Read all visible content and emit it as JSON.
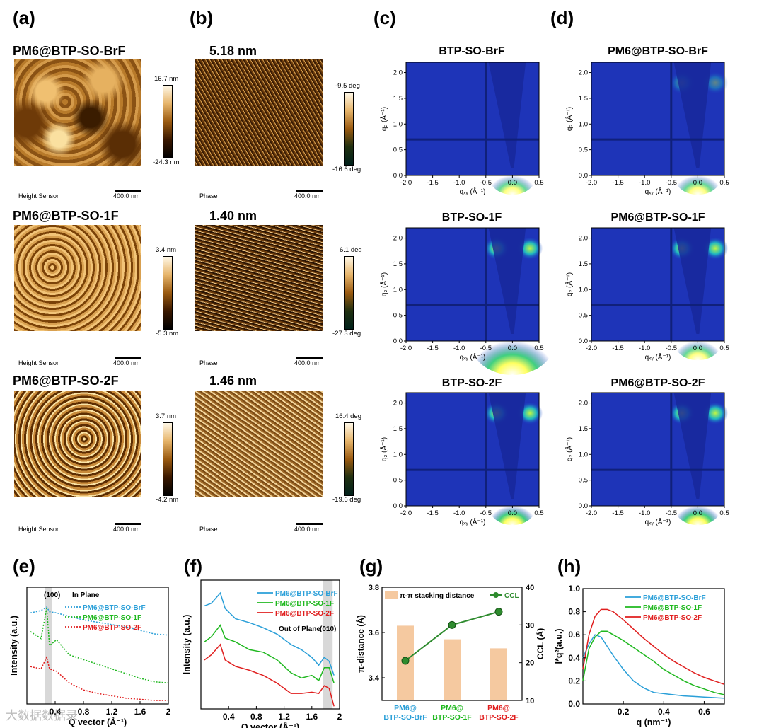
{
  "panels": {
    "a": "(a)",
    "b": "(b)",
    "c": "(c)",
    "d": "(d)",
    "e": "(e)",
    "f": "(f)",
    "g": "(g)",
    "h": "(h)"
  },
  "afm_height": [
    {
      "title": "PM6@BTP-SO-BrF",
      "cmax": "16.7 nm",
      "cmin": "-24.3 nm",
      "label": "Height Sensor",
      "scale": "400.0 nm"
    },
    {
      "title": "PM6@BTP-SO-1F",
      "cmax": "3.4 nm",
      "cmin": "-5.3 nm",
      "label": "Height Sensor",
      "scale": "400.0 nm"
    },
    {
      "title": "PM6@BTP-SO-2F",
      "cmax": "3.7 nm",
      "cmin": "-4.2 nm",
      "label": "Height Sensor",
      "scale": "400.0 nm"
    }
  ],
  "afm_phase": [
    {
      "title": "5.18 nm",
      "cmax": "-9.5 deg",
      "cmin": "-16.6 deg",
      "label": "Phase",
      "scale": "400.0 nm"
    },
    {
      "title": "1.40 nm",
      "cmax": "6.1 deg",
      "cmin": "-27.3 deg",
      "label": "Phase",
      "scale": "400.0 nm"
    },
    {
      "title": "1.46 nm",
      "cmax": "16.4 deg",
      "cmin": "-19.6 deg",
      "label": "Phase",
      "scale": "400.0 nm"
    }
  ],
  "giwaxs_c": [
    "BTP-SO-BrF",
    "BTP-SO-1F",
    "BTP-SO-2F"
  ],
  "giwaxs_d": [
    "PM6@BTP-SO-BrF",
    "PM6@BTP-SO-1F",
    "PM6@BTP-SO-2F"
  ],
  "giwaxs_axes": {
    "x_ticks": [
      "-2.0",
      "-1.5",
      "-1.0",
      "-0.5",
      "0.0",
      "0.5"
    ],
    "y_ticks": [
      "0.0",
      "0.5",
      "1.0",
      "1.5",
      "2.0"
    ],
    "xlim": [
      -2.0,
      0.5
    ],
    "ylim": [
      0,
      2.2
    ],
    "xlabel": "qₓᵧ (Å⁻¹)",
    "ylabel": "q₂ (Å⁻¹)"
  },
  "watermark": "大数据数据录",
  "colors": {
    "blue": "#2a9fd8",
    "green": "#1fb81f",
    "red": "#e01e1e",
    "bar": "#f5c9a0",
    "ccl": "#2e8b2e"
  },
  "chart_data": [
    {
      "type": "line",
      "panel": "e",
      "xlabel": "Q vector (Å⁻¹)",
      "ylabel": "Intensity (a.u.)",
      "annotation": "In Plane",
      "peak_label": "(100)",
      "x_ticks": [
        "0.4",
        "0.8",
        "1.2",
        "1.6",
        "2"
      ],
      "xlim": [
        0,
        2
      ],
      "x": [
        0.05,
        0.2,
        0.28,
        0.32,
        0.42,
        0.6,
        0.8,
        1.0,
        1.2,
        1.4,
        1.6,
        1.8,
        2.0
      ],
      "series": [
        {
          "name": "PM6@BTP-SO-BrF",
          "values": [
            0.78,
            0.8,
            0.83,
            0.79,
            0.78,
            0.75,
            0.72,
            0.7,
            0.68,
            0.66,
            0.63,
            0.6,
            0.59
          ]
        },
        {
          "name": "PM6@BTP-SO-1F",
          "values": [
            0.62,
            0.56,
            0.82,
            0.5,
            0.55,
            0.42,
            0.38,
            0.34,
            0.3,
            0.26,
            0.22,
            0.19,
            0.18
          ]
        },
        {
          "name": "PM6@BTP-SO-2F",
          "values": [
            0.32,
            0.3,
            0.4,
            0.3,
            0.28,
            0.18,
            0.12,
            0.09,
            0.07,
            0.05,
            0.04,
            0.03,
            0.03
          ]
        }
      ]
    },
    {
      "type": "line",
      "panel": "f",
      "xlabel": "Q vector (Å⁻¹)",
      "ylabel": "Intensity (a.u.)",
      "annotation": "Out of Plane",
      "peak_label": "(010)",
      "x_ticks": [
        "0.4",
        "0.8",
        "1.2",
        "1.6",
        "2"
      ],
      "xlim": [
        0,
        2
      ],
      "x": [
        0.05,
        0.15,
        0.28,
        0.35,
        0.5,
        0.7,
        0.9,
        1.1,
        1.3,
        1.45,
        1.6,
        1.7,
        1.78,
        1.85,
        1.92
      ],
      "series": [
        {
          "name": "PM6@BTP-SO-BrF",
          "values": [
            0.8,
            0.82,
            0.9,
            0.78,
            0.7,
            0.67,
            0.63,
            0.58,
            0.5,
            0.46,
            0.4,
            0.34,
            0.4,
            0.37,
            0.26
          ]
        },
        {
          "name": "PM6@BTP-SO-1F",
          "values": [
            0.52,
            0.56,
            0.65,
            0.55,
            0.52,
            0.46,
            0.44,
            0.38,
            0.28,
            0.24,
            0.26,
            0.22,
            0.32,
            0.32,
            0.2
          ]
        },
        {
          "name": "PM6@BTP-SO-2F",
          "values": [
            0.38,
            0.42,
            0.5,
            0.38,
            0.33,
            0.3,
            0.26,
            0.2,
            0.12,
            0.12,
            0.13,
            0.12,
            0.18,
            0.16,
            0.02
          ]
        }
      ]
    },
    {
      "type": "bar",
      "panel": "g",
      "categories": [
        "PM6@\nBTP-SO-BrF",
        "PM6@\nBTP-SO-1F",
        "PM6@\nBTP-SO-2F"
      ],
      "category_lines": [
        [
          "PM6@",
          "BTP-SO-BrF"
        ],
        [
          "PM6@",
          "BTP-SO-1F"
        ],
        [
          "PM6@",
          "BTP-SO-2F"
        ]
      ],
      "category_colors": [
        "#2a9fd8",
        "#1fb81f",
        "#e01e1e"
      ],
      "ylabel": "π-distance (Å)",
      "y2label": "CCL (Å)",
      "ylim": [
        3.3,
        3.8
      ],
      "y_ticks": [
        "3.4",
        "3.6",
        "3.8"
      ],
      "y2lim": [
        10,
        40
      ],
      "y2_ticks": [
        "10",
        "20",
        "30",
        "40"
      ],
      "series": [
        {
          "name": "π-π stacking distance",
          "values": [
            3.63,
            3.57,
            3.53
          ]
        },
        {
          "name": "CCL",
          "values": [
            20.5,
            30,
            33.5
          ]
        }
      ]
    },
    {
      "type": "line",
      "panel": "h",
      "xlabel": "q (nm⁻¹)",
      "ylabel": "I*q²(a.u.)",
      "xlim": [
        0,
        0.7
      ],
      "ylim": [
        0,
        1.0
      ],
      "x_ticks": [
        "0.2",
        "0.4",
        "0.6"
      ],
      "y_ticks": [
        "0.0",
        "0.2",
        "0.4",
        "0.6",
        "0.8",
        "1.0"
      ],
      "x": [
        0.0,
        0.03,
        0.06,
        0.09,
        0.12,
        0.15,
        0.2,
        0.25,
        0.3,
        0.35,
        0.4,
        0.45,
        0.5,
        0.55,
        0.6,
        0.65,
        0.7
      ],
      "series": [
        {
          "name": "PM6@BTP-SO-BrF",
          "values": [
            0.4,
            0.52,
            0.6,
            0.58,
            0.5,
            0.42,
            0.3,
            0.2,
            0.14,
            0.1,
            0.09,
            0.08,
            0.07,
            0.065,
            0.06,
            0.055,
            0.05
          ]
        },
        {
          "name": "PM6@BTP-SO-1F",
          "values": [
            0.2,
            0.48,
            0.58,
            0.63,
            0.63,
            0.6,
            0.55,
            0.49,
            0.43,
            0.37,
            0.3,
            0.25,
            0.2,
            0.16,
            0.13,
            0.1,
            0.08
          ]
        },
        {
          "name": "PM6@BTP-SO-2F",
          "values": [
            0.3,
            0.6,
            0.76,
            0.82,
            0.82,
            0.8,
            0.73,
            0.65,
            0.57,
            0.5,
            0.43,
            0.37,
            0.32,
            0.27,
            0.23,
            0.2,
            0.17
          ]
        }
      ]
    }
  ]
}
